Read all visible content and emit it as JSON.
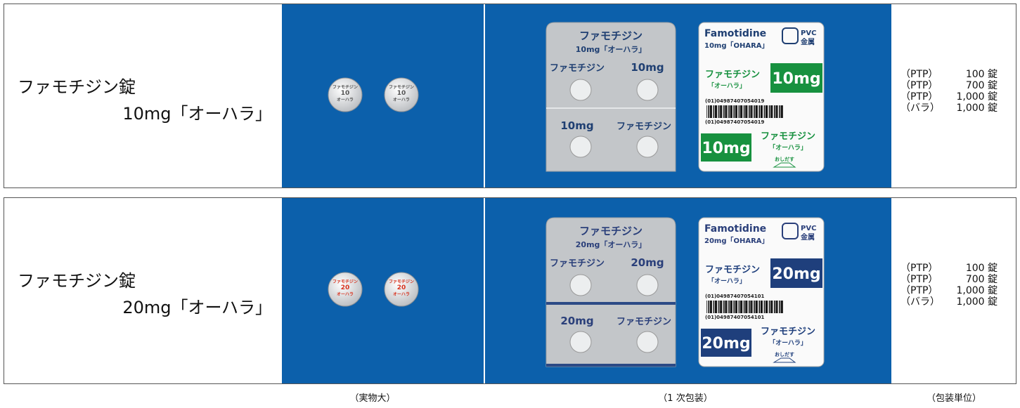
{
  "products": [
    {
      "name_line1": "ファモチジン錠",
      "name_line2": "10mg「オーハラ」",
      "accent_color": "#17913f",
      "tablet_imprint": [
        "ファモチジン",
        "10",
        "オーハラ"
      ],
      "blister": {
        "brand": "ファモチジン",
        "strength_name": "10mg「オーハラ」",
        "strength": "10mg"
      },
      "box": {
        "latin_name": "Famotidine",
        "latin_strength": "10mg「OHARA」",
        "material_1": "PVC",
        "material_2": "金属",
        "brand": "ファモチジン",
        "maker": "「オーハラ」",
        "strength": "10mg",
        "barcode": "(01)04987407054019",
        "push": "おしだす"
      },
      "packaging": [
        {
          "type": "（PTP）",
          "quantity": "100 錠"
        },
        {
          "type": "（PTP）",
          "quantity": "700 錠"
        },
        {
          "type": "（PTP）",
          "quantity": "1,000 錠"
        },
        {
          "type": "（バラ）",
          "quantity": "1,000 錠"
        }
      ]
    },
    {
      "name_line1": "ファモチジン錠",
      "name_line2": "20mg「オーハラ」",
      "accent_color": "#1f3f7c",
      "tablet_imprint": [
        "ファモチジン",
        "20",
        "オーハラ"
      ],
      "blister": {
        "brand": "ファモチジン",
        "strength_name": "20mg「オーハラ」",
        "strength": "20mg"
      },
      "box": {
        "latin_name": "Famotidine",
        "latin_strength": "20mg「OHARA」",
        "material_1": "PVC",
        "material_2": "金属",
        "brand": "ファモチジン",
        "maker": "「オーハラ」",
        "strength": "20mg",
        "barcode": "(01)04987407054101",
        "push": "おしだす"
      },
      "packaging": [
        {
          "type": "（PTP）",
          "quantity": "100 錠"
        },
        {
          "type": "（PTP）",
          "quantity": "700 錠"
        },
        {
          "type": "（PTP）",
          "quantity": "1,000 錠"
        },
        {
          "type": "（バラ）",
          "quantity": "1,000 錠"
        }
      ]
    }
  ],
  "captions": [
    "（実物大）",
    "（1 次包装）",
    "（包装単位）"
  ]
}
